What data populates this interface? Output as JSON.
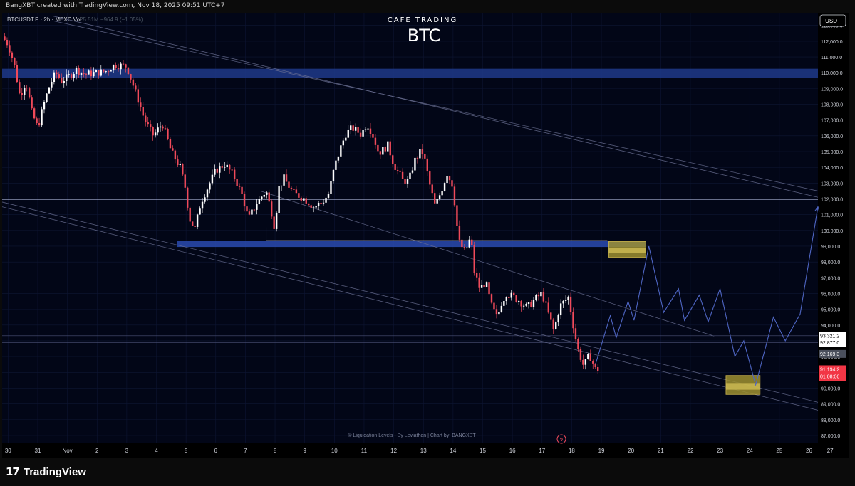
{
  "page": {
    "caption": "BangXBT created with TradingView.com, Nov 18, 2025 09:51 UTC+7",
    "logo_text": "TradingView"
  },
  "chart_data": {
    "type": "candlestick",
    "symbol_line": "BTCUSDT.P · 2h · MEXC  Vol",
    "volume_text": "25.51M  −964.9 (−1.05%)",
    "brand": "CAFÉ TRADING",
    "title": "BTC",
    "currency": "USDT",
    "footer_note": "© Liquidation Levels - By Leviathan | Chart by: BANGXBT",
    "ylim": [
      86500,
      113800
    ],
    "y_ticks": [
      87000,
      88000,
      89000,
      90000,
      91000,
      92000,
      93000,
      94000,
      95000,
      96000,
      97000,
      98000,
      99000,
      100000,
      101000,
      102000,
      103000,
      104000,
      105000,
      106000,
      107000,
      108000,
      109000,
      110000,
      111000,
      112000,
      113000
    ],
    "y_tick_labels": [
      "87,000.0",
      "88,000.0",
      "89,000.0",
      "90,000.0",
      "91,000.0",
      "92,000.0",
      "93,000.0",
      "94,000.0",
      "95,000.0",
      "96,000.0",
      "97,000.0",
      "98,000.0",
      "99,000.0",
      "100,000.0",
      "101,000.0",
      "102,000.0",
      "103,000.0",
      "104,000.0",
      "105,000.0",
      "106,000.0",
      "107,000.0",
      "108,000.0",
      "109,000.0",
      "110,000.0",
      "111,000.0",
      "112,000.0",
      "113,000.0"
    ],
    "x_range": [
      29.8,
      57.3
    ],
    "x_ticks": [
      {
        "t": 30,
        "label": "30"
      },
      {
        "t": 31,
        "label": "31"
      },
      {
        "t": 32,
        "label": "Nov"
      },
      {
        "t": 33,
        "label": "2"
      },
      {
        "t": 34,
        "label": "3"
      },
      {
        "t": 35,
        "label": "4"
      },
      {
        "t": 36,
        "label": "5"
      },
      {
        "t": 37,
        "label": "6"
      },
      {
        "t": 38,
        "label": "7"
      },
      {
        "t": 39,
        "label": "8"
      },
      {
        "t": 40,
        "label": "9"
      },
      {
        "t": 41,
        "label": "10"
      },
      {
        "t": 42,
        "label": "11"
      },
      {
        "t": 43,
        "label": "12"
      },
      {
        "t": 44,
        "label": "13"
      },
      {
        "t": 45,
        "label": "14"
      },
      {
        "t": 46,
        "label": "15"
      },
      {
        "t": 47,
        "label": "16"
      },
      {
        "t": 48,
        "label": "17"
      },
      {
        "t": 49,
        "label": "18"
      },
      {
        "t": 50,
        "label": "19"
      },
      {
        "t": 51,
        "label": "20"
      },
      {
        "t": 52,
        "label": "21"
      },
      {
        "t": 53,
        "label": "22"
      },
      {
        "t": 54,
        "label": "23"
      },
      {
        "t": 55,
        "label": "24"
      },
      {
        "t": 56,
        "label": "25"
      },
      {
        "t": 57,
        "label": "26"
      },
      {
        "t": 58,
        "label": "27"
      }
    ],
    "price_path": [
      [
        29.8,
        112300
      ],
      [
        30.0,
        111800
      ],
      [
        30.2,
        110600
      ],
      [
        30.4,
        108500
      ],
      [
        30.6,
        109500
      ],
      [
        30.8,
        107500
      ],
      [
        31.0,
        106500
      ],
      [
        31.2,
        108000
      ],
      [
        31.4,
        109200
      ],
      [
        31.6,
        110000
      ],
      [
        31.8,
        109500
      ],
      [
        32.0,
        109700
      ],
      [
        32.3,
        110200
      ],
      [
        32.6,
        109900
      ],
      [
        33.0,
        110000
      ],
      [
        33.3,
        110100
      ],
      [
        33.6,
        110500
      ],
      [
        34.0,
        110400
      ],
      [
        34.2,
        109300
      ],
      [
        34.4,
        108200
      ],
      [
        34.6,
        107000
      ],
      [
        34.9,
        106000
      ],
      [
        35.2,
        106800
      ],
      [
        35.5,
        105000
      ],
      [
        35.8,
        104000
      ],
      [
        36.0,
        102500
      ],
      [
        36.1,
        100800
      ],
      [
        36.3,
        100100
      ],
      [
        36.5,
        101800
      ],
      [
        36.7,
        102600
      ],
      [
        37.0,
        103800
      ],
      [
        37.3,
        104200
      ],
      [
        37.6,
        103500
      ],
      [
        37.9,
        102200
      ],
      [
        38.1,
        100700
      ],
      [
        38.4,
        101800
      ],
      [
        38.7,
        102500
      ],
      [
        38.9,
        101000
      ],
      [
        39.0,
        100000
      ],
      [
        39.1,
        102600
      ],
      [
        39.3,
        103300
      ],
      [
        39.6,
        102400
      ],
      [
        40.0,
        102000
      ],
      [
        40.3,
        101500
      ],
      [
        40.6,
        101800
      ],
      [
        40.8,
        102300
      ],
      [
        41.0,
        104000
      ],
      [
        41.2,
        105200
      ],
      [
        41.4,
        106200
      ],
      [
        41.6,
        106500
      ],
      [
        41.9,
        106100
      ],
      [
        42.1,
        106800
      ],
      [
        42.3,
        106000
      ],
      [
        42.5,
        104900
      ],
      [
        42.8,
        105400
      ],
      [
        43.0,
        104200
      ],
      [
        43.3,
        103200
      ],
      [
        43.5,
        103100
      ],
      [
        43.7,
        104400
      ],
      [
        43.9,
        105000
      ],
      [
        44.0,
        104900
      ],
      [
        44.2,
        103000
      ],
      [
        44.4,
        101500
      ],
      [
        44.6,
        102500
      ],
      [
        44.8,
        103600
      ],
      [
        45.0,
        102800
      ],
      [
        45.1,
        100800
      ],
      [
        45.2,
        99300
      ],
      [
        45.4,
        98600
      ],
      [
        45.6,
        99600
      ],
      [
        45.7,
        97500
      ],
      [
        45.9,
        96300
      ],
      [
        46.1,
        96700
      ],
      [
        46.3,
        95200
      ],
      [
        46.5,
        94400
      ],
      [
        46.6,
        95300
      ],
      [
        46.8,
        96000
      ],
      [
        47.0,
        95800
      ],
      [
        47.2,
        95600
      ],
      [
        47.5,
        95100
      ],
      [
        47.8,
        95700
      ],
      [
        48.0,
        96000
      ],
      [
        48.2,
        94800
      ],
      [
        48.4,
        93600
      ],
      [
        48.6,
        95200
      ],
      [
        48.9,
        95800
      ],
      [
        49.0,
        94500
      ],
      [
        49.2,
        92500
      ],
      [
        49.4,
        91400
      ],
      [
        49.6,
        92100
      ],
      [
        49.8,
        91200
      ],
      [
        49.9,
        91194
      ]
    ],
    "horizontal_lines": [
      {
        "price": 101980,
        "label": "102,000.0 level",
        "color": "#cfd8ff"
      },
      {
        "price": 93321.2,
        "color": "#4c5277"
      },
      {
        "price": 92877.0,
        "color": "#4c5277"
      }
    ],
    "zones": [
      {
        "name": "resistance-band",
        "x0": 29.8,
        "x1": 57.3,
        "p0": 110250,
        "p1": 109650,
        "color": "#1e3a8a"
      },
      {
        "name": "support-band",
        "x0": 35.7,
        "x1": 51.5,
        "p0": 99350,
        "p1": 98950,
        "color": "#2a4bb0"
      }
    ],
    "boxes": [
      {
        "name": "liquidity-box-upper",
        "x0": 50.25,
        "x1": 51.5,
        "p0": 99300,
        "p1": 98300
      },
      {
        "name": "liquidity-box-lower",
        "x0": 54.2,
        "x1": 55.35,
        "p0": 90800,
        "p1": 89600
      }
    ],
    "channel_lines": [
      {
        "x0": 31.5,
        "p0": 113600,
        "x1": 57.3,
        "p1": 102100
      },
      {
        "x0": 31.5,
        "p0": 113300,
        "x1": 57.3,
        "p1": 102500
      },
      {
        "x0": 29.8,
        "p0": 101800,
        "x1": 57.3,
        "p1": 89100
      },
      {
        "x0": 29.8,
        "p0": 101500,
        "x1": 57.3,
        "p1": 88600
      },
      {
        "x0": 38.5,
        "p0": 102500,
        "x1": 53.8,
        "p1": 93300
      }
    ],
    "projection_path": [
      [
        49.8,
        91500
      ],
      [
        50.3,
        94600
      ],
      [
        50.5,
        93200
      ],
      [
        50.9,
        95500
      ],
      [
        51.1,
        94300
      ],
      [
        51.6,
        99000
      ],
      [
        52.1,
        94800
      ],
      [
        52.6,
        96300
      ],
      [
        52.8,
        94300
      ],
      [
        53.3,
        95900
      ],
      [
        53.6,
        94200
      ],
      [
        54.0,
        96300
      ],
      [
        54.5,
        92000
      ],
      [
        54.8,
        93000
      ],
      [
        55.2,
        90200
      ],
      [
        55.8,
        94500
      ],
      [
        56.2,
        93000
      ],
      [
        56.7,
        94700
      ],
      [
        57.3,
        101500
      ]
    ],
    "price_labels": [
      {
        "text": "93,321.2",
        "price": 93321.2,
        "style": "white"
      },
      {
        "text": "92,877.0",
        "price": 92877.0,
        "style": "white"
      },
      {
        "text": "92,169.3",
        "price": 92169.3,
        "style": "gray"
      },
      {
        "text": "91,194.2",
        "price": 91194.2,
        "style": "red",
        "sub": "01:08:06"
      }
    ],
    "colors": {
      "up": "#ffffff",
      "down": "#f04a5a",
      "background": "#020617",
      "grid": "#0e1633",
      "projection": "#4f66c4",
      "box": "#9e9030"
    }
  }
}
